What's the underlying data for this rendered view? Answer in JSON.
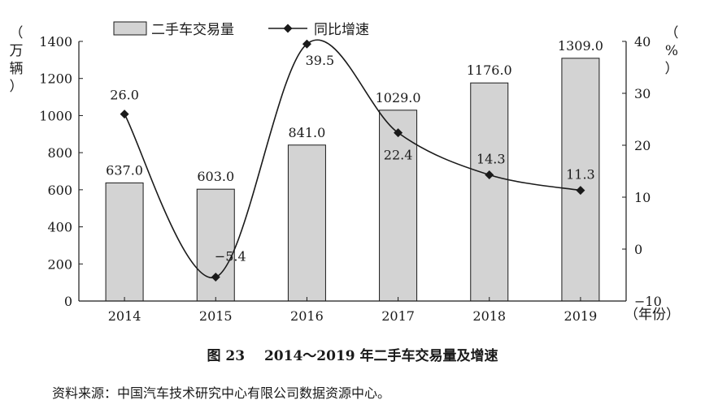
{
  "chart_data": {
    "type": "bar",
    "title": "图 23   2014～2019 年二手车交易量及增速",
    "categories": [
      "2014",
      "2015",
      "2016",
      "2017",
      "2018",
      "2019"
    ],
    "series": [
      {
        "name": "二手车交易量",
        "kind": "bar",
        "axis": "left",
        "values": [
          637.0,
          603.0,
          841.0,
          1029.0,
          1176.0,
          1309.0
        ],
        "labels": [
          "637.0",
          "603.0",
          "841.0",
          "1029.0",
          "1176.0",
          "1309.0"
        ],
        "color": "#d3d3d3"
      },
      {
        "name": "同比增速",
        "kind": "line",
        "axis": "right",
        "values": [
          26.0,
          -5.4,
          39.5,
          22.4,
          14.3,
          11.3
        ],
        "labels": [
          "26.0",
          "−5.4",
          "39.5",
          "22.4",
          "14.3",
          "11.3"
        ],
        "color": "#1a1a1a"
      }
    ],
    "ylabel_left": "（万辆）",
    "ylabel_right": "（%）",
    "xlabel": "（年份）",
    "ylim_left": [
      0,
      1400
    ],
    "yticks_left": [
      0,
      200,
      400,
      600,
      800,
      1000,
      1200,
      1400
    ],
    "ylim_right": [
      -10,
      40
    ],
    "yticks_right": [
      -10,
      0,
      10,
      20,
      30,
      40
    ],
    "legend_position": "top-left",
    "grid": false
  },
  "caption": {
    "figure_label": "图 23",
    "text": "2014～2019 年二手车交易量及增速"
  },
  "source": "资料来源：中国汽车技术研究中心有限公司数据资源中心。"
}
